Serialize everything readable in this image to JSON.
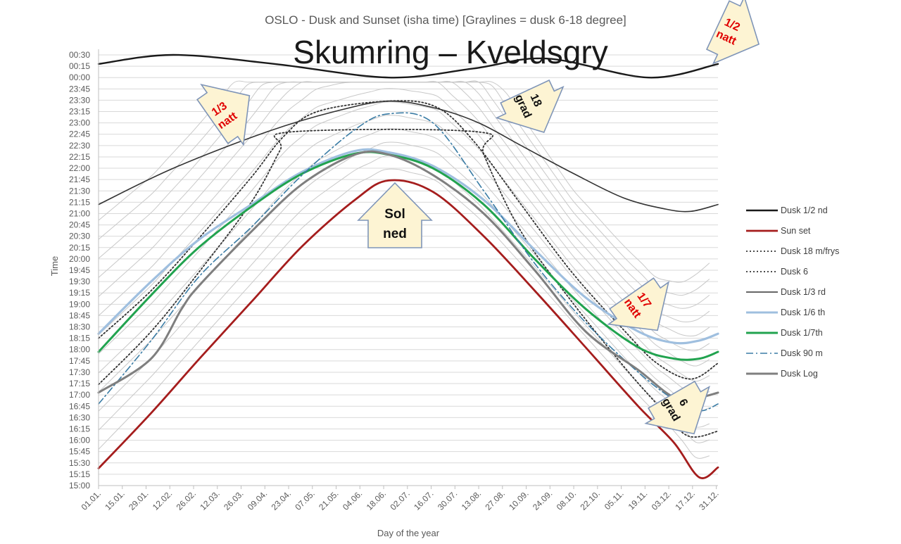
{
  "title": "Skumring – Kveldsgry",
  "chart_data": {
    "type": "line",
    "title": "OSLO - Dusk and Sunset (isha time) [Graylines = dusk 6-18 degree]",
    "xlabel": "Day of the year",
    "ylabel": "Time",
    "x_ticks": [
      "01.01.",
      "15.01.",
      "29.01.",
      "12.02.",
      "26.02.",
      "12.03.",
      "26.03.",
      "09.04.",
      "23.04.",
      "07.05.",
      "21.05.",
      "04.06.",
      "18.06.",
      "02.07.",
      "16.07.",
      "30.07.",
      "13.08.",
      "27.08.",
      "10.09.",
      "24.09.",
      "08.10.",
      "22.10.",
      "05.11.",
      "19.11.",
      "03.12.",
      "17.12.",
      "31.12."
    ],
    "y_ticks": [
      "00:30",
      "00:15",
      "00:00",
      "23:45",
      "23:30",
      "23:15",
      "23:00",
      "22:45",
      "22:30",
      "22:15",
      "22:00",
      "21:45",
      "21:30",
      "21:15",
      "21:00",
      "20:45",
      "20:30",
      "20:15",
      "20:00",
      "19:45",
      "19:30",
      "19:15",
      "19:00",
      "18:45",
      "18:30",
      "18:15",
      "18:00",
      "17:45",
      "17:30",
      "17:15",
      "17:00",
      "16:45",
      "16:30",
      "16:15",
      "16:00",
      "15:45",
      "15:30",
      "15:15",
      "15:00"
    ],
    "y_range_hours": [
      15.0,
      24.5
    ],
    "x_range_days": [
      1,
      366
    ],
    "grid": "horizontal",
    "legend_position": "right",
    "series": [
      {
        "name": "Dusk 1/2 nd",
        "color": "#1a1a1a",
        "style": "solid",
        "points": [
          [
            1,
            24.3
          ],
          [
            45,
            24.5
          ],
          [
            105,
            24.3
          ],
          [
            172,
            24.0
          ],
          [
            222,
            24.2
          ],
          [
            265,
            24.42
          ],
          [
            325,
            24.0
          ],
          [
            366,
            24.3
          ]
        ]
      },
      {
        "name": "Sun set",
        "color": "#a51d1d",
        "style": "solid",
        "points": [
          [
            1,
            15.38
          ],
          [
            32,
            16.6
          ],
          [
            60,
            17.78
          ],
          [
            91,
            19.05
          ],
          [
            121,
            20.28
          ],
          [
            152,
            21.3
          ],
          [
            172,
            21.73
          ],
          [
            198,
            21.48
          ],
          [
            228,
            20.5
          ],
          [
            258,
            19.3
          ],
          [
            288,
            18.05
          ],
          [
            319,
            16.75
          ],
          [
            340,
            15.95
          ],
          [
            355,
            15.18
          ],
          [
            366,
            15.4
          ]
        ]
      },
      {
        "name": "Dusk 18 m/frys",
        "color": "#333333",
        "style": "dotted",
        "points": [
          [
            1,
            17.23
          ],
          [
            32,
            18.4
          ],
          [
            60,
            19.7
          ],
          [
            91,
            21.25
          ],
          [
            108,
            22.4
          ],
          [
            114,
            22.8
          ],
          [
            225,
            22.8
          ],
          [
            228,
            22.3
          ],
          [
            250,
            20.6
          ],
          [
            280,
            19.05
          ],
          [
            310,
            17.65
          ],
          [
            330,
            16.8
          ],
          [
            348,
            16.1
          ],
          [
            366,
            16.2
          ]
        ]
      },
      {
        "name": "Dusk 6",
        "color": "#333333",
        "style": "dotted",
        "points": [
          [
            1,
            18.25
          ],
          [
            32,
            19.3
          ],
          [
            60,
            20.45
          ],
          [
            91,
            21.8
          ],
          [
            110,
            22.7
          ],
          [
            130,
            23.25
          ],
          [
            172,
            23.48
          ],
          [
            200,
            23.35
          ],
          [
            222,
            22.6
          ],
          [
            250,
            21.2
          ],
          [
            280,
            19.7
          ],
          [
            310,
            18.45
          ],
          [
            330,
            17.7
          ],
          [
            350,
            17.35
          ],
          [
            366,
            17.7
          ]
        ]
      },
      {
        "name": "Dusk 1/3 rd",
        "color": "#333333",
        "style": "solid",
        "points": [
          [
            1,
            21.2
          ],
          [
            45,
            22.0
          ],
          [
            100,
            22.8
          ],
          [
            140,
            23.25
          ],
          [
            172,
            23.48
          ],
          [
            200,
            23.32
          ],
          [
            225,
            23.0
          ],
          [
            250,
            22.5
          ],
          [
            280,
            21.9
          ],
          [
            310,
            21.35
          ],
          [
            335,
            21.1
          ],
          [
            350,
            21.05
          ],
          [
            366,
            21.2
          ]
        ]
      },
      {
        "name": "Dusk 1/6 th",
        "color": "#9fbfdf",
        "style": "solid",
        "points": [
          [
            1,
            18.35
          ],
          [
            32,
            19.5
          ],
          [
            60,
            20.42
          ],
          [
            91,
            21.2
          ],
          [
            121,
            21.92
          ],
          [
            152,
            22.38
          ],
          [
            172,
            22.35
          ],
          [
            198,
            22.05
          ],
          [
            228,
            21.3
          ],
          [
            258,
            20.2
          ],
          [
            288,
            19.15
          ],
          [
            319,
            18.4
          ],
          [
            340,
            18.15
          ],
          [
            355,
            18.2
          ],
          [
            366,
            18.35
          ]
        ]
      },
      {
        "name": "Dusk 1/7th",
        "color": "#21a34f",
        "style": "solid",
        "points": [
          [
            1,
            17.95
          ],
          [
            32,
            19.2
          ],
          [
            60,
            20.25
          ],
          [
            91,
            21.15
          ],
          [
            121,
            21.88
          ],
          [
            152,
            22.32
          ],
          [
            172,
            22.3
          ],
          [
            198,
            22.0
          ],
          [
            228,
            21.2
          ],
          [
            258,
            20.0
          ],
          [
            288,
            18.9
          ],
          [
            319,
            18.05
          ],
          [
            340,
            17.8
          ],
          [
            355,
            17.8
          ],
          [
            366,
            17.95
          ]
        ]
      },
      {
        "name": "Dusk 90 m",
        "color": "#3a7ca5",
        "style": "dashdot",
        "points": [
          [
            1,
            16.8
          ],
          [
            32,
            18.2
          ],
          [
            60,
            19.6
          ],
          [
            91,
            20.7
          ],
          [
            121,
            21.85
          ],
          [
            152,
            22.85
          ],
          [
            172,
            23.2
          ],
          [
            198,
            23.0
          ],
          [
            228,
            21.5
          ],
          [
            258,
            19.9
          ],
          [
            288,
            18.6
          ],
          [
            319,
            17.5
          ],
          [
            340,
            16.9
          ],
          [
            355,
            16.65
          ],
          [
            366,
            16.8
          ]
        ]
      },
      {
        "name": "Dusk Log",
        "color": "#7f7f7f",
        "style": "solid",
        "points": [
          [
            1,
            17.05
          ],
          [
            32,
            17.8
          ],
          [
            50,
            18.9
          ],
          [
            60,
            19.4
          ],
          [
            91,
            20.6
          ],
          [
            121,
            21.65
          ],
          [
            152,
            22.3
          ],
          [
            172,
            22.3
          ],
          [
            198,
            21.85
          ],
          [
            228,
            21.0
          ],
          [
            258,
            19.75
          ],
          [
            288,
            18.4
          ],
          [
            319,
            17.55
          ],
          [
            340,
            16.95
          ],
          [
            355,
            16.95
          ],
          [
            366,
            17.05
          ]
        ]
      }
    ]
  },
  "arrows": [
    {
      "label_lines": [
        "1/2",
        "natt"
      ],
      "color": "red"
    },
    {
      "label_lines": [
        "1/3",
        "natt"
      ],
      "color": "red"
    },
    {
      "label_lines": [
        "18",
        "grad"
      ],
      "color": "black"
    },
    {
      "label_lines": [
        "Sol",
        "ned"
      ],
      "color": "black"
    },
    {
      "label_lines": [
        "1/7",
        "natt"
      ],
      "color": "red"
    },
    {
      "label_lines": [
        "6",
        "grad"
      ],
      "color": "black"
    }
  ]
}
